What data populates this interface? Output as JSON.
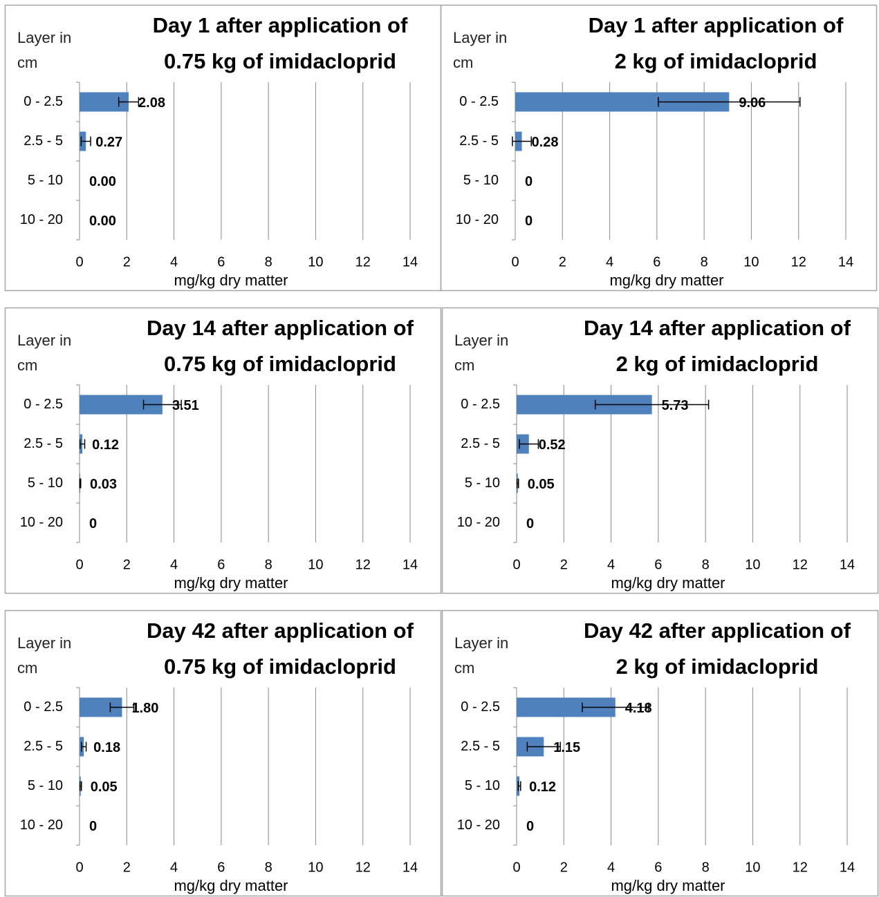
{
  "chart_data": [
    {
      "type": "bar",
      "title": [
        "Day 1 after application  of",
        "0.75 kg of imidacloprid"
      ],
      "ylabel": "Layer in cm",
      "xlabel": "mg/kg dry matter",
      "categories": [
        "0 - 2.5",
        "2.5 - 5",
        "5 - 10",
        "10 - 20"
      ],
      "values": [
        2.08,
        0.27,
        0,
        0
      ],
      "value_labels": [
        "2.08",
        "0.27",
        "0.00",
        "0.00"
      ],
      "errors": [
        0.42,
        0.2,
        null,
        null
      ],
      "color": "#4f81bd",
      "xlim": [
        0,
        14
      ],
      "xticks": [
        0,
        2,
        4,
        6,
        8,
        10,
        12,
        14
      ],
      "grid": true
    },
    {
      "type": "bar",
      "title": [
        "Day 1 after application  of",
        "2 kg of imidacloprid"
      ],
      "ylabel": "Layer in cm",
      "xlabel": "mg/kg dry matter",
      "categories": [
        "0 - 2.5",
        "2.5 - 5",
        "5 - 10",
        "10 - 20"
      ],
      "values": [
        9.06,
        0.28,
        0,
        0
      ],
      "errors": [
        3.0,
        0.4,
        null,
        null
      ],
      "color": "#4f81bd",
      "xlim": [
        0,
        14
      ],
      "xticks": [
        0,
        2,
        4,
        6,
        8,
        10,
        12,
        14
      ],
      "grid": true
    },
    {
      "type": "bar",
      "title": [
        "Day 14 after application  of",
        "0.75 kg of imidacloprid"
      ],
      "ylabel": "Layer in cm",
      "xlabel": "mg/kg dry matter",
      "categories": [
        "0 - 2.5",
        "2.5 - 5",
        "5 - 10",
        "10 - 20"
      ],
      "values": [
        3.51,
        0.12,
        0.03,
        0
      ],
      "errors": [
        0.8,
        0.1,
        0.02,
        null
      ],
      "color": "#4f81bd",
      "xlim": [
        0,
        14
      ],
      "xticks": [
        0,
        2,
        4,
        6,
        8,
        10,
        12,
        14
      ],
      "grid": true
    },
    {
      "type": "bar",
      "title": [
        "Day 14 after application  of",
        "2 kg of imidacloprid"
      ],
      "ylabel": "Layer in cm",
      "xlabel": "mg/kg dry matter",
      "categories": [
        "0 - 2.5",
        "2.5 - 5",
        "5 - 10",
        "10 - 20"
      ],
      "values": [
        5.73,
        0.52,
        0.05,
        0
      ],
      "errors": [
        2.4,
        0.4,
        0.03,
        null
      ],
      "color": "#4f81bd",
      "xlim": [
        0,
        14
      ],
      "xticks": [
        0,
        2,
        4,
        6,
        8,
        10,
        12,
        14
      ],
      "grid": true
    },
    {
      "type": "bar",
      "title": [
        "Day 42 after application  of",
        "0.75 kg of imidacloprid"
      ],
      "ylabel": "Layer in cm",
      "xlabel": "mg/kg dry matter",
      "categories": [
        "0 - 2.5",
        "2.5 - 5",
        "5 - 10",
        "10 - 20"
      ],
      "values": [
        1.8,
        0.18,
        0.05,
        0
      ],
      "value_labels": [
        "1.80",
        "0.18",
        "0.05",
        "0"
      ],
      "errors": [
        0.5,
        0.1,
        0.03,
        null
      ],
      "color": "#4f81bd",
      "xlim": [
        0,
        14
      ],
      "xticks": [
        0,
        2,
        4,
        6,
        8,
        10,
        12,
        14
      ],
      "grid": true
    },
    {
      "type": "bar",
      "title": [
        "Day 42 after application  of",
        "2 kg of imidacloprid"
      ],
      "ylabel": "Layer in cm",
      "xlabel": "mg/kg dry matter",
      "categories": [
        "0 - 2.5",
        "2.5 - 5",
        "5 - 10",
        "10 - 20"
      ],
      "values": [
        4.18,
        1.15,
        0.12,
        0
      ],
      "errors": [
        1.4,
        0.7,
        0.05,
        null
      ],
      "color": "#4f81bd",
      "xlim": [
        0,
        14
      ],
      "xticks": [
        0,
        2,
        4,
        6,
        8,
        10,
        12,
        14
      ],
      "grid": true
    }
  ]
}
